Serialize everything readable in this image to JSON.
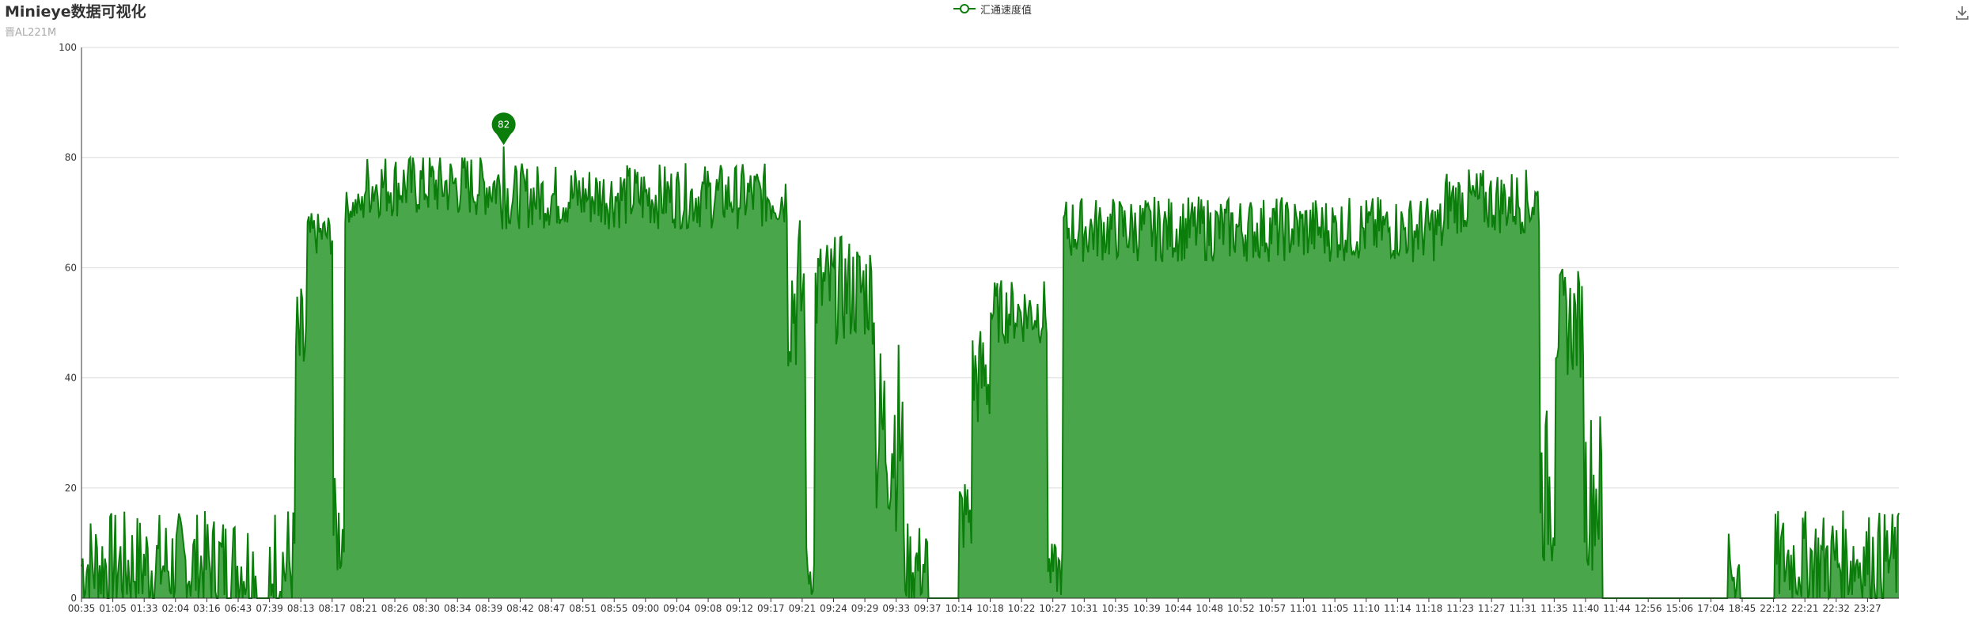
{
  "title": "Minieye数据可视化",
  "subtitle": "晋AL221M",
  "legend": {
    "label": "汇通速度值"
  },
  "toolbox": {
    "save_icon": "download-icon"
  },
  "colors": {
    "line": "#0a7d0a",
    "area": "#4aa64a",
    "marker": "#0a7d0a",
    "grid": "#d9d9d9",
    "axis": "#333333"
  },
  "chart_data": {
    "type": "area",
    "series": [
      {
        "name": "汇通速度值"
      }
    ],
    "x_tick_labels": [
      "00:35",
      "01:05",
      "01:33",
      "02:04",
      "03:16",
      "06:43",
      "07:39",
      "08:13",
      "08:17",
      "08:21",
      "08:26",
      "08:30",
      "08:34",
      "08:39",
      "08:42",
      "08:47",
      "08:51",
      "08:55",
      "09:00",
      "09:04",
      "09:08",
      "09:12",
      "09:17",
      "09:21",
      "09:24",
      "09:29",
      "09:33",
      "09:37",
      "10:14",
      "10:18",
      "10:22",
      "10:27",
      "10:31",
      "10:35",
      "10:39",
      "10:44",
      "10:48",
      "10:52",
      "10:57",
      "11:01",
      "11:05",
      "11:10",
      "11:14",
      "11:18",
      "11:23",
      "11:27",
      "11:31",
      "11:35",
      "11:40",
      "11:44",
      "12:56",
      "15:06",
      "17:04",
      "18:45",
      "22:12",
      "22:21",
      "22:32",
      "23:27"
    ],
    "y_ticks": [
      0,
      20,
      40,
      60,
      80,
      100
    ],
    "ylim": [
      0,
      100
    ],
    "grid": true,
    "legend_position": "top-center",
    "max_marker": {
      "value": 82,
      "label": "82"
    },
    "segments": [
      {
        "from_tick": 0,
        "to_tick": 5.6,
        "level": 6,
        "noise": 10,
        "floor": 0
      },
      {
        "from_tick": 5.6,
        "to_tick": 6.0,
        "level": 0,
        "noise": 0,
        "floor": 0
      },
      {
        "from_tick": 6.0,
        "to_tick": 6.8,
        "level": 6,
        "noise": 12,
        "floor": 0
      },
      {
        "from_tick": 6.8,
        "to_tick": 7.2,
        "level": 45,
        "noise": 12,
        "floor": 20
      },
      {
        "from_tick": 7.2,
        "to_tick": 8.0,
        "level": 66,
        "noise": 4,
        "floor": 60
      },
      {
        "from_tick": 8.0,
        "to_tick": 8.4,
        "level": 12,
        "noise": 10,
        "floor": 0
      },
      {
        "from_tick": 8.4,
        "to_tick": 9.0,
        "level": 71,
        "noise": 3,
        "floor": 65
      },
      {
        "from_tick": 9.0,
        "to_tick": 13.4,
        "level": 75,
        "noise": 6,
        "floor": 65
      },
      {
        "from_tick": 13.4,
        "to_tick": 22.5,
        "level": 73,
        "noise": 6,
        "floor": 60
      },
      {
        "from_tick": 22.5,
        "to_tick": 23.1,
        "level": 55,
        "noise": 15,
        "floor": 40
      },
      {
        "from_tick": 23.1,
        "to_tick": 23.4,
        "level": 5,
        "noise": 5,
        "floor": 0
      },
      {
        "from_tick": 23.4,
        "to_tick": 25.3,
        "level": 56,
        "noise": 10,
        "floor": 30
      },
      {
        "from_tick": 25.3,
        "to_tick": 26.2,
        "level": 30,
        "noise": 18,
        "floor": 5
      },
      {
        "from_tick": 26.2,
        "to_tick": 27.0,
        "level": 6,
        "noise": 8,
        "floor": 0
      },
      {
        "from_tick": 27.0,
        "to_tick": 28.0,
        "level": 0,
        "noise": 0,
        "floor": 0
      },
      {
        "from_tick": 28.0,
        "to_tick": 28.4,
        "level": 15,
        "noise": 8,
        "floor": 5
      },
      {
        "from_tick": 28.4,
        "to_tick": 29.0,
        "level": 40,
        "noise": 10,
        "floor": 25
      },
      {
        "from_tick": 29.0,
        "to_tick": 30.8,
        "level": 52,
        "noise": 6,
        "floor": 40
      },
      {
        "from_tick": 30.8,
        "to_tick": 31.3,
        "level": 5,
        "noise": 5,
        "floor": 0
      },
      {
        "from_tick": 31.3,
        "to_tick": 43.5,
        "level": 67,
        "noise": 6,
        "floor": 57
      },
      {
        "from_tick": 43.5,
        "to_tick": 46.5,
        "level": 72,
        "noise": 6,
        "floor": 60
      },
      {
        "from_tick": 46.5,
        "to_tick": 47.0,
        "level": 20,
        "noise": 15,
        "floor": 0
      },
      {
        "from_tick": 47.0,
        "to_tick": 47.9,
        "level": 50,
        "noise": 10,
        "floor": 30
      },
      {
        "from_tick": 47.9,
        "to_tick": 48.5,
        "level": 20,
        "noise": 15,
        "floor": 3
      },
      {
        "from_tick": 48.5,
        "to_tick": 52.5,
        "level": 0,
        "noise": 0,
        "floor": 0
      },
      {
        "from_tick": 52.5,
        "to_tick": 52.9,
        "level": 5,
        "noise": 7,
        "floor": 0
      },
      {
        "from_tick": 52.9,
        "to_tick": 54.0,
        "level": 0,
        "noise": 0,
        "floor": 0
      },
      {
        "from_tick": 54.0,
        "to_tick": 57.8,
        "level": 7,
        "noise": 9,
        "floor": 0
      }
    ]
  }
}
